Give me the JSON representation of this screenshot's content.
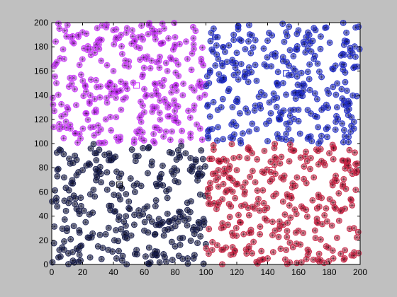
{
  "chart_data": {
    "type": "scatter",
    "title": "",
    "xlabel": "",
    "ylabel": "",
    "xlim": [
      0,
      200
    ],
    "ylim": [
      0,
      200
    ],
    "x_ticks": [
      0,
      20,
      40,
      60,
      80,
      100,
      120,
      140,
      160,
      180,
      200
    ],
    "y_ticks": [
      0,
      20,
      40,
      60,
      80,
      100,
      120,
      140,
      160,
      180,
      200
    ],
    "grid": false,
    "legend": "none",
    "marker": "circle-asterisk",
    "series": [
      {
        "color": "#cc33ff",
        "x_range": [
          0,
          100
        ],
        "y_range": [
          100,
          200
        ],
        "count": 300,
        "points": [
          [
            5,
            195
          ],
          [
            12,
            188
          ],
          [
            20,
            192
          ],
          [
            30,
            185
          ],
          [
            45,
            190
          ],
          [
            55,
            180
          ],
          [
            65,
            195
          ],
          [
            80,
            188
          ],
          [
            92,
            182
          ],
          [
            8,
            170
          ],
          [
            18,
            165
          ],
          [
            28,
            175
          ],
          [
            40,
            160
          ],
          [
            50,
            168
          ],
          [
            62,
            172
          ],
          [
            75,
            160
          ],
          [
            88,
            170
          ],
          [
            3,
            150
          ],
          [
            15,
            145
          ],
          [
            25,
            140
          ],
          [
            38,
            150
          ],
          [
            48,
            138
          ],
          [
            60,
            145
          ],
          [
            70,
            150
          ],
          [
            85,
            140
          ],
          [
            95,
            148
          ],
          [
            10,
            130
          ],
          [
            22,
            125
          ],
          [
            35,
            120
          ],
          [
            45,
            128
          ],
          [
            58,
            118
          ],
          [
            68,
            130
          ],
          [
            80,
            122
          ],
          [
            92,
            128
          ],
          [
            5,
            112
          ],
          [
            18,
            108
          ],
          [
            30,
            115
          ],
          [
            42,
            105
          ],
          [
            55,
            110
          ],
          [
            66,
            102
          ],
          [
            78,
            110
          ],
          [
            90,
            105
          ]
        ]
      },
      {
        "color": "#1f2bcc",
        "x_range": [
          100,
          200
        ],
        "y_range": [
          100,
          200
        ],
        "count": 300,
        "points": [
          [
            105,
            195
          ],
          [
            118,
            190
          ],
          [
            128,
            198
          ],
          [
            140,
            185
          ],
          [
            152,
            192
          ],
          [
            165,
            188
          ],
          [
            178,
            196
          ],
          [
            190,
            185
          ],
          [
            108,
            170
          ],
          [
            120,
            175
          ],
          [
            132,
            165
          ],
          [
            145,
            172
          ],
          [
            158,
            160
          ],
          [
            170,
            170
          ],
          [
            182,
            162
          ],
          [
            195,
            175
          ],
          [
            102,
            150
          ],
          [
            115,
            145
          ],
          [
            125,
            155
          ],
          [
            138,
            140
          ],
          [
            150,
            150
          ],
          [
            162,
            142
          ],
          [
            175,
            155
          ],
          [
            188,
            145
          ],
          [
            110,
            130
          ],
          [
            122,
            125
          ],
          [
            135,
            132
          ],
          [
            148,
            120
          ],
          [
            160,
            128
          ],
          [
            172,
            122
          ],
          [
            185,
            130
          ],
          [
            196,
            118
          ],
          [
            104,
            112
          ],
          [
            116,
            105
          ],
          [
            128,
            110
          ],
          [
            140,
            102
          ],
          [
            152,
            108
          ],
          [
            166,
            104
          ],
          [
            178,
            112
          ],
          [
            190,
            106
          ]
        ]
      },
      {
        "color": "#141a4a",
        "x_range": [
          0,
          100
        ],
        "y_range": [
          0,
          100
        ],
        "count": 300,
        "points": [
          [
            5,
            95
          ],
          [
            15,
            90
          ],
          [
            28,
            92
          ],
          [
            40,
            88
          ],
          [
            52,
            95
          ],
          [
            65,
            85
          ],
          [
            78,
            92
          ],
          [
            90,
            88
          ],
          [
            8,
            72
          ],
          [
            20,
            78
          ],
          [
            32,
            68
          ],
          [
            45,
            75
          ],
          [
            58,
            65
          ],
          [
            70,
            72
          ],
          [
            82,
            68
          ],
          [
            95,
            75
          ],
          [
            3,
            55
          ],
          [
            15,
            50
          ],
          [
            25,
            58
          ],
          [
            38,
            45
          ],
          [
            50,
            52
          ],
          [
            62,
            48
          ],
          [
            75,
            55
          ],
          [
            88,
            45
          ],
          [
            10,
            30
          ],
          [
            22,
            35
          ],
          [
            35,
            25
          ],
          [
            48,
            32
          ],
          [
            60,
            28
          ],
          [
            72,
            35
          ],
          [
            85,
            22
          ],
          [
            96,
            30
          ],
          [
            5,
            12
          ],
          [
            18,
            8
          ],
          [
            30,
            15
          ],
          [
            42,
            5
          ],
          [
            55,
            12
          ],
          [
            68,
            8
          ],
          [
            80,
            15
          ],
          [
            92,
            5
          ]
        ]
      },
      {
        "color": "#cc2244",
        "x_range": [
          100,
          200
        ],
        "y_range": [
          0,
          100
        ],
        "count": 300,
        "points": [
          [
            105,
            95
          ],
          [
            118,
            88
          ],
          [
            130,
            92
          ],
          [
            142,
            85
          ],
          [
            155,
            95
          ],
          [
            168,
            88
          ],
          [
            180,
            92
          ],
          [
            192,
            85
          ],
          [
            108,
            72
          ],
          [
            120,
            78
          ],
          [
            132,
            68
          ],
          [
            145,
            75
          ],
          [
            158,
            65
          ],
          [
            170,
            72
          ],
          [
            182,
            68
          ],
          [
            195,
            75
          ],
          [
            102,
            55
          ],
          [
            115,
            50
          ],
          [
            125,
            58
          ],
          [
            138,
            45
          ],
          [
            150,
            52
          ],
          [
            162,
            48
          ],
          [
            175,
            55
          ],
          [
            188,
            45
          ],
          [
            110,
            30
          ],
          [
            122,
            35
          ],
          [
            135,
            25
          ],
          [
            148,
            32
          ],
          [
            160,
            28
          ],
          [
            172,
            35
          ],
          [
            185,
            22
          ],
          [
            196,
            30
          ],
          [
            104,
            12
          ],
          [
            116,
            8
          ],
          [
            128,
            15
          ],
          [
            140,
            5
          ],
          [
            152,
            12
          ],
          [
            166,
            8
          ],
          [
            178,
            15
          ],
          [
            190,
            5
          ]
        ]
      }
    ],
    "extra_markers": [
      {
        "shape": "square",
        "x": 44,
        "y": 66,
        "color": "#000000"
      },
      {
        "shape": "square",
        "x": 143,
        "y": 78,
        "color": "#cc2244"
      },
      {
        "shape": "square",
        "x": 152,
        "y": 158,
        "color": "#1f2bcc"
      },
      {
        "shape": "square",
        "x": 55,
        "y": 148,
        "color": "#cc33ff"
      }
    ]
  }
}
